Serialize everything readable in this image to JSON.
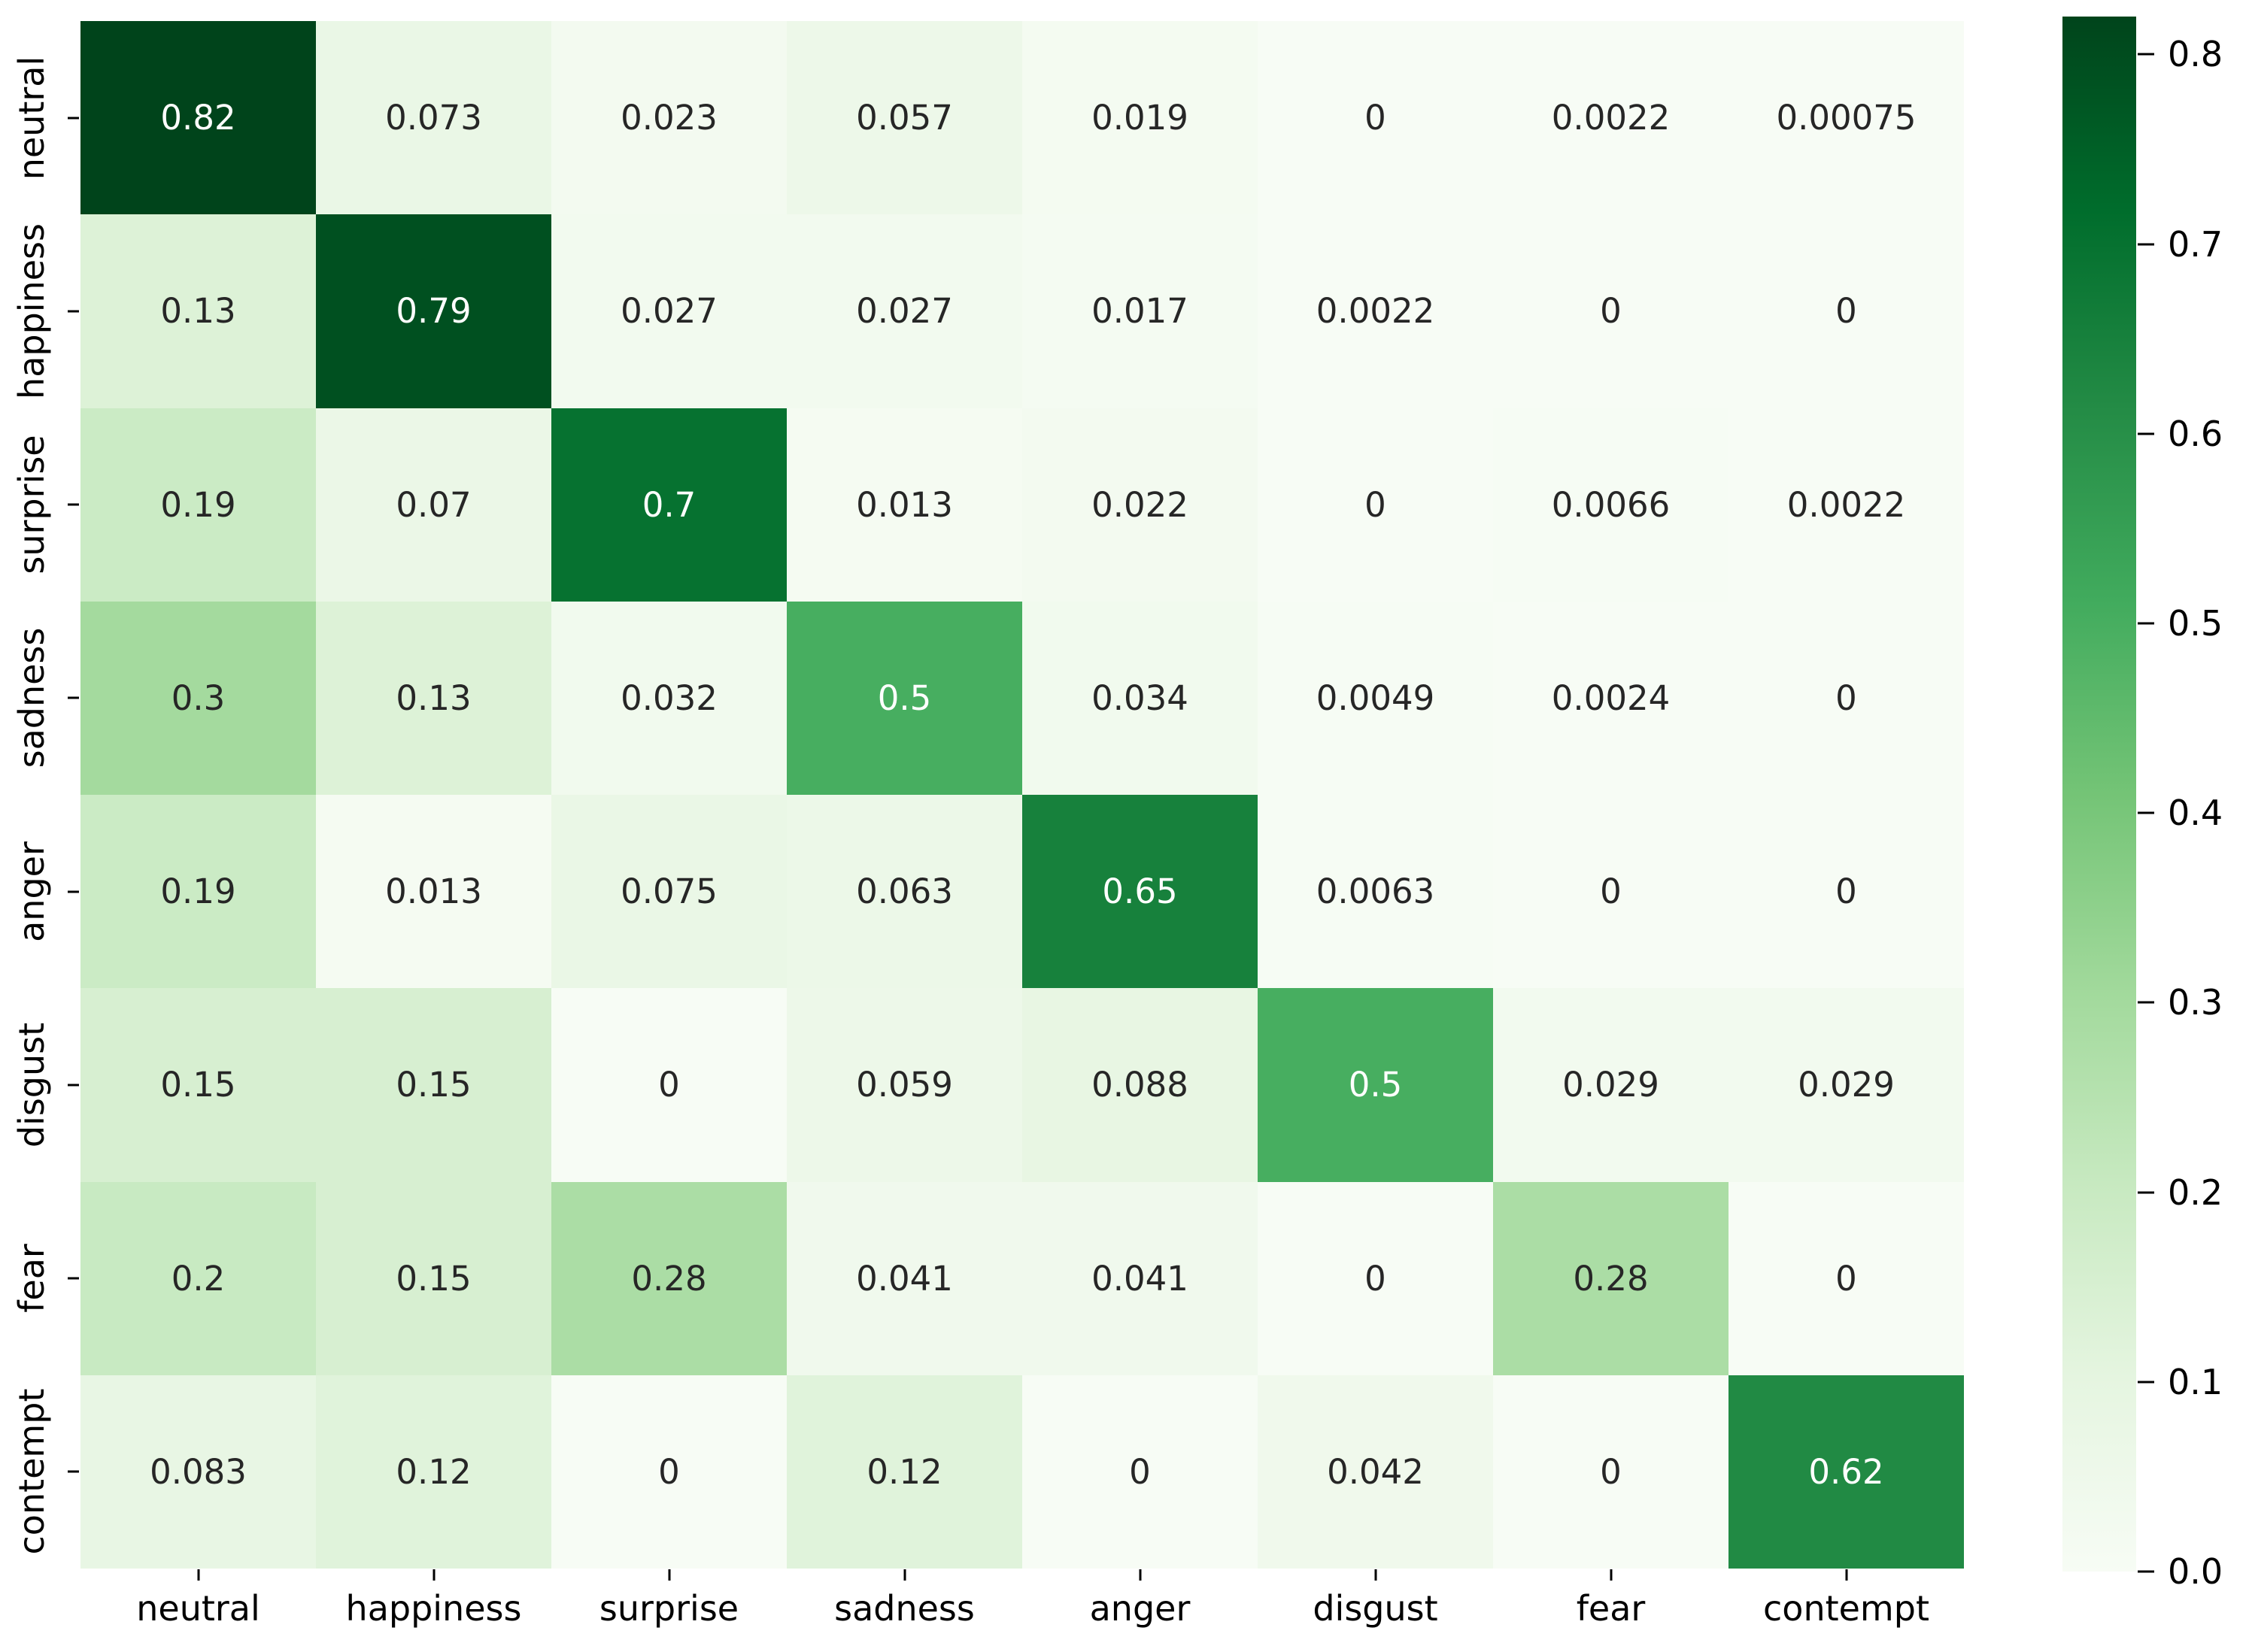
{
  "chart_data": {
    "type": "heatmap",
    "title": "",
    "xlabel": "",
    "ylabel": "",
    "categories": [
      "neutral",
      "happiness",
      "surprise",
      "sadness",
      "anger",
      "disgust",
      "fear",
      "contempt"
    ],
    "rows": [
      "neutral",
      "happiness",
      "surprise",
      "sadness",
      "anger",
      "disgust",
      "fear",
      "contempt"
    ],
    "cell_labels": [
      [
        "0.82",
        "0.073",
        "0.023",
        "0.057",
        "0.019",
        "0",
        "0.0022",
        "0.00075"
      ],
      [
        "0.13",
        "0.79",
        "0.027",
        "0.027",
        "0.017",
        "0.0022",
        "0",
        "0"
      ],
      [
        "0.19",
        "0.07",
        "0.7",
        "0.013",
        "0.022",
        "0",
        "0.0066",
        "0.0022"
      ],
      [
        "0.3",
        "0.13",
        "0.032",
        "0.5",
        "0.034",
        "0.0049",
        "0.0024",
        "0"
      ],
      [
        "0.19",
        "0.013",
        "0.075",
        "0.063",
        "0.65",
        "0.0063",
        "0",
        "0"
      ],
      [
        "0.15",
        "0.15",
        "0",
        "0.059",
        "0.088",
        "0.5",
        "0.029",
        "0.029"
      ],
      [
        "0.2",
        "0.15",
        "0.28",
        "0.041",
        "0.041",
        "0",
        "0.28",
        "0"
      ],
      [
        "0.083",
        "0.12",
        "0",
        "0.12",
        "0",
        "0.042",
        "0",
        "0.62"
      ]
    ],
    "matrix": [
      [
        0.82,
        0.073,
        0.023,
        0.057,
        0.019,
        0,
        0.0022,
        0.00075
      ],
      [
        0.13,
        0.79,
        0.027,
        0.027,
        0.017,
        0.0022,
        0,
        0
      ],
      [
        0.19,
        0.07,
        0.7,
        0.013,
        0.022,
        0,
        0.0066,
        0.0022
      ],
      [
        0.3,
        0.13,
        0.032,
        0.5,
        0.034,
        0.0049,
        0.0024,
        0
      ],
      [
        0.19,
        0.013,
        0.075,
        0.063,
        0.65,
        0.0063,
        0,
        0
      ],
      [
        0.15,
        0.15,
        0,
        0.059,
        0.088,
        0.5,
        0.029,
        0.029
      ],
      [
        0.2,
        0.15,
        0.28,
        0.041,
        0.041,
        0,
        0.28,
        0
      ],
      [
        0.083,
        0.12,
        0,
        0.12,
        0,
        0.042,
        0,
        0.62
      ]
    ],
    "colormap": "Greens",
    "colormap_anchors": [
      "#f7fcf5",
      "#e5f5e0",
      "#c7e9c0",
      "#a1d99b",
      "#74c476",
      "#41ab5d",
      "#238b45",
      "#006d2c",
      "#00441b"
    ],
    "vmin": 0,
    "vmax": 0.82,
    "grid": false,
    "legend_position": "right-colorbar",
    "colorbar_ticks": [
      "0.0",
      "0.1",
      "0.2",
      "0.3",
      "0.4",
      "0.5",
      "0.6",
      "0.7",
      "0.8"
    ],
    "colors": {
      "annotation_dark": "#262626",
      "annotation_light": "#ffffff",
      "tick_color": "#000000",
      "background": "#ffffff"
    }
  }
}
